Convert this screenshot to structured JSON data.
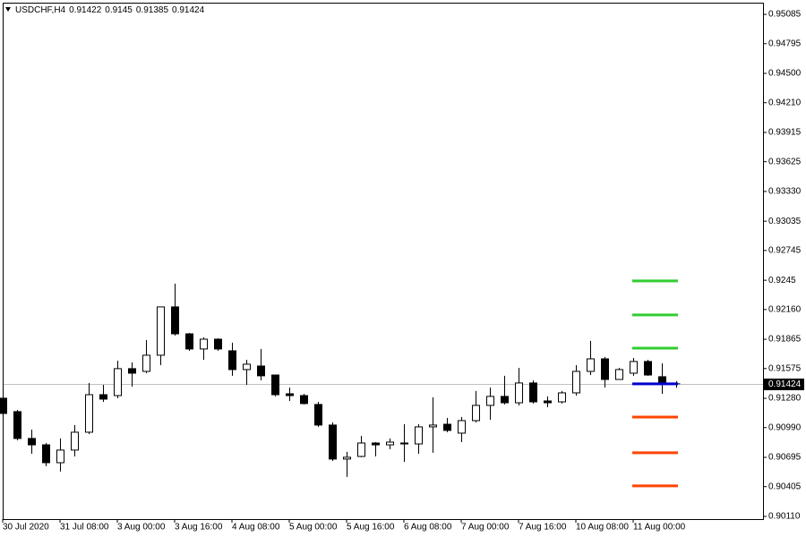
{
  "chart_data": {
    "type": "candlestick",
    "title": "USDCHF,H4",
    "categories": [
      "30 Jul 2020",
      null,
      null,
      null,
      "31 Jul 08:00",
      null,
      null,
      null,
      "3 Aug 00:00",
      null,
      null,
      null,
      "3 Aug 16:00",
      null,
      null,
      null,
      "4 Aug 08:00",
      null,
      null,
      null,
      "5 Aug 00:00",
      null,
      null,
      null,
      "5 Aug 16:00",
      null,
      null,
      null,
      "6 Aug 08:00",
      null,
      null,
      null,
      "7 Aug 00:00",
      null,
      null,
      null,
      "7 Aug 16:00",
      null,
      null,
      null,
      "10 Aug 08:00",
      null,
      null,
      null,
      "11 Aug 00:00",
      null,
      null,
      null
    ],
    "open": [
      0.91281,
      0.91148,
      0.90882,
      0.90819,
      0.90642,
      0.90767,
      0.90944,
      0.91316,
      0.91307,
      0.91574,
      0.91547,
      0.91707,
      0.92186,
      0.91919,
      0.91769,
      0.91866,
      0.91751,
      0.91565,
      0.916,
      0.91511,
      0.91325,
      0.91307,
      0.91219,
      0.91015,
      0.90678,
      0.90704,
      0.90837,
      0.90819,
      0.90828,
      0.90828,
      0.90997,
      0.91023,
      0.90935,
      0.91059,
      0.9121,
      0.91299,
      0.91236,
      0.91432,
      0.91254,
      0.91245,
      0.91334,
      0.91547,
      0.91671,
      0.91467,
      0.91529,
      0.91645,
      0.91494,
      0.91422
    ],
    "high": [
      0.91325,
      0.91165,
      0.9097,
      0.90837,
      0.90882,
      0.91015,
      0.91432,
      0.91414,
      0.91653,
      0.91636,
      0.91857,
      0.92186,
      0.92417,
      0.91928,
      0.91884,
      0.91875,
      0.91831,
      0.91662,
      0.91769,
      0.91511,
      0.91387,
      0.91325,
      0.91245,
      0.91041,
      0.90749,
      0.90908,
      0.90846,
      0.90882,
      0.91023,
      0.91023,
      0.9129,
      0.91085,
      0.91094,
      0.91352,
      0.91387,
      0.91503,
      0.91582,
      0.91458,
      0.91299,
      0.91352,
      0.91609,
      0.91849,
      0.91689,
      0.91582,
      0.9168,
      0.91662,
      0.91627,
      0.9145
    ],
    "low": [
      0.91103,
      0.90864,
      0.90731,
      0.90607,
      0.90554,
      0.90704,
      0.90926,
      0.91245,
      0.91281,
      0.91396,
      0.91529,
      0.91609,
      0.91902,
      0.91751,
      0.91662,
      0.91751,
      0.91503,
      0.91414,
      0.91458,
      0.91299,
      0.91254,
      0.91219,
      0.90997,
      0.9066,
      0.90501,
      0.90696,
      0.90704,
      0.90775,
      0.90651,
      0.90731,
      0.9074,
      0.90944,
      0.90846,
      0.91041,
      0.91068,
      0.91219,
      0.9121,
      0.91228,
      0.91192,
      0.91228,
      0.91307,
      0.91511,
      0.91387,
      0.91467,
      0.91503,
      0.91503,
      0.91325,
      0.91385
    ],
    "close": [
      0.9113,
      0.90882,
      0.90819,
      0.90642,
      0.90767,
      0.90944,
      0.91316,
      0.91272,
      0.91574,
      0.91529,
      0.91707,
      0.92186,
      0.91919,
      0.91769,
      0.91866,
      0.91769,
      0.91565,
      0.91618,
      0.91503,
      0.91316,
      0.91307,
      0.91228,
      0.91015,
      0.90678,
      0.90696,
      0.90837,
      0.90819,
      0.90846,
      0.90837,
      0.90997,
      0.91015,
      0.90962,
      0.91059,
      0.9121,
      0.91299,
      0.91236,
      0.91432,
      0.91245,
      0.91236,
      0.91334,
      0.91547,
      0.91671,
      0.91467,
      0.91565,
      0.91645,
      0.91511,
      0.91432,
      0.91424
    ],
    "bull_color": "#ffffff",
    "bear_color": "#000000",
    "levels": [
      {
        "value": 0.92443,
        "color": "#32cd32"
      },
      {
        "value": 0.92106,
        "color": "#32cd32"
      },
      {
        "value": 0.91777,
        "color": "#32cd32"
      },
      {
        "value": 0.91424,
        "color": "#0000cd"
      },
      {
        "value": 0.91094,
        "color": "#ff4500"
      },
      {
        "value": 0.9074,
        "color": "#ff4500"
      },
      {
        "value": 0.90412,
        "color": "#ff4500"
      }
    ],
    "ylim": [
      0.90083,
      0.95192
    ],
    "yticks": [
      0.95085,
      0.94795,
      {
        "value": 0.945,
        "label": "0.94500"
      },
      {
        "value": 0.9421,
        "label": "0.94210"
      },
      0.93915,
      0.93625,
      {
        "value": 0.9333,
        "label": "0.93330"
      },
      0.93035,
      0.92745,
      0.9245,
      {
        "value": 0.9216,
        "label": "0.92160"
      },
      0.91865,
      0.91575,
      {
        "value": 0.9128,
        "label": "0.91280"
      },
      {
        "value": 0.9099,
        "label": "0.90990"
      },
      0.90695,
      0.90405,
      {
        "value": 0.9011,
        "label": "0.90110"
      }
    ]
  }
}
